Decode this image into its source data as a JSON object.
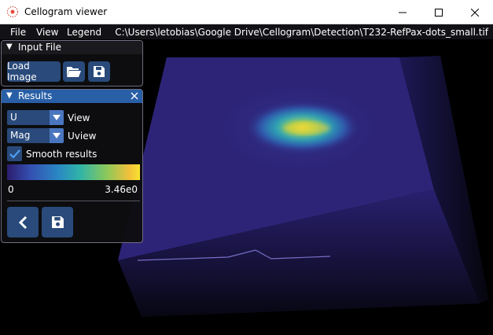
{
  "window": {
    "title": "Cellogram viewer",
    "controls": [
      "minimize-icon",
      "maximize-icon",
      "close-icon"
    ]
  },
  "menubar": {
    "items": [
      "File",
      "View",
      "Legend"
    ],
    "path": "C:\\Users\\letobias\\Google Drive\\Cellogram\\Detection\\T232-RefPax-dots_small.tif"
  },
  "input_panel": {
    "title": "Input File",
    "load_button": "Load Image",
    "icons": [
      "folder-open-icon",
      "save-icon"
    ]
  },
  "results_panel": {
    "title": "Results",
    "view_select": {
      "value": "U",
      "label": "View"
    },
    "uview_select": {
      "value": "Mag",
      "label": "Uview"
    },
    "smooth": {
      "label": "Smooth results",
      "checked": true
    },
    "colorbar": {
      "min": "0",
      "max": "3.46e0"
    },
    "icons": [
      "back-icon",
      "save-icon"
    ]
  },
  "colors": {
    "accent": "#295fa6",
    "button": "#294a7a",
    "panel_bg": "#0e0e10",
    "surface": "#2d2478"
  }
}
